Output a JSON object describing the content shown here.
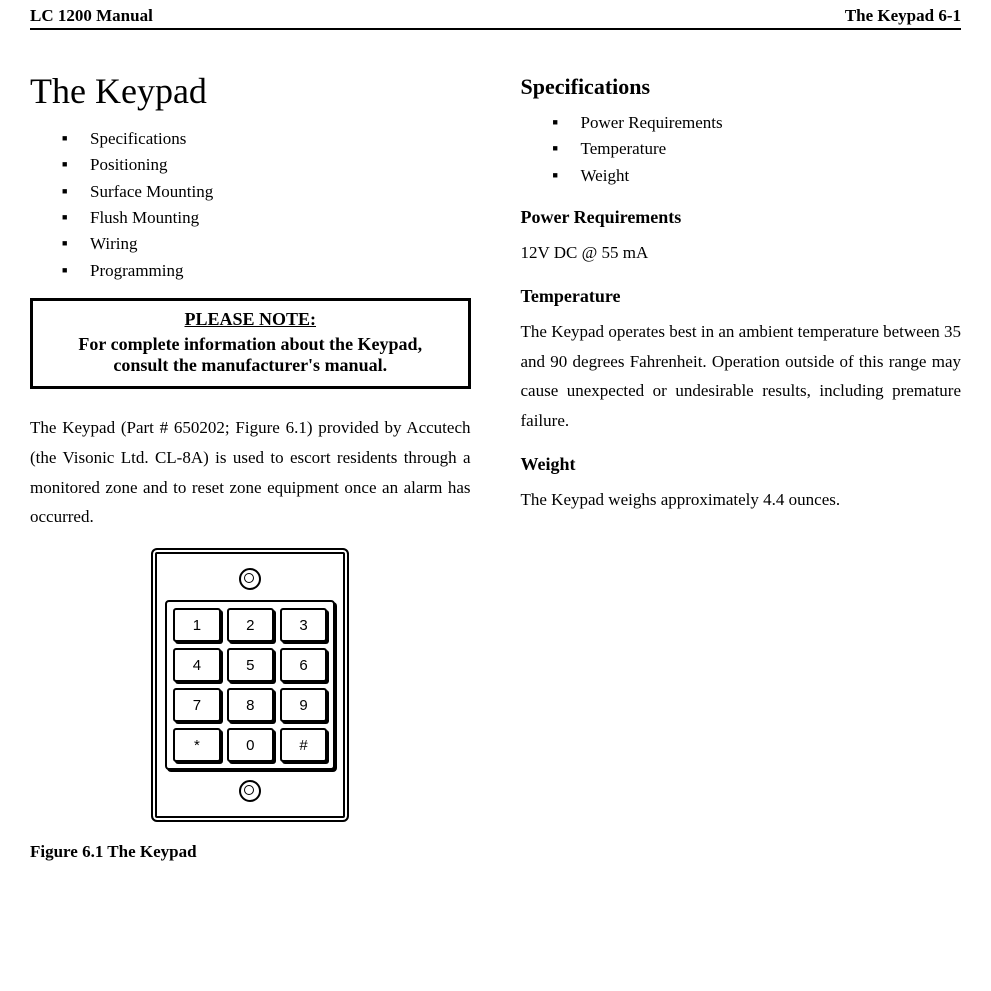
{
  "header": {
    "left": "LC 1200 Manual",
    "right": "The Keypad 6-1"
  },
  "left_col": {
    "title": "The Keypad",
    "toc": [
      "Specifications",
      "Positioning",
      "Surface Mounting",
      "Flush Mounting",
      "Wiring",
      "Programming"
    ],
    "note": {
      "title": "PLEASE NOTE:",
      "line1": "For complete information about the Keypad,",
      "line2": "consult the manufacturer's manual."
    },
    "intro": "The Keypad (Part # 650202; Figure 6.1) provided by Accutech (the Visonic Ltd. CL-8A) is used to escort residents through a monitored zone and to reset zone equipment once an alarm has occurred.",
    "keypad_keys": [
      "1",
      "2",
      "3",
      "4",
      "5",
      "6",
      "7",
      "8",
      "9",
      "*",
      "0",
      "#"
    ],
    "figure_caption": "Figure 6.1 The Keypad"
  },
  "right_col": {
    "spec_heading": "Specifications",
    "spec_items": [
      "Power Requirements",
      "Temperature",
      "Weight"
    ],
    "power_heading": "Power Requirements",
    "power_body": "12V DC @ 55 mA",
    "temp_heading": "Temperature",
    "temp_body": "The Keypad operates best in an ambient temperature between 35 and 90 degrees Fahrenheit. Operation outside of this range may cause unexpected or undesirable results, including premature failure.",
    "weight_heading": "Weight",
    "weight_body": "The Keypad weighs approximately 4.4 ounces."
  },
  "style": {
    "text_color": "#000000",
    "background_color": "#ffffff",
    "border_color": "#000000",
    "body_font": "Times New Roman",
    "title_fontsize_pt": 27,
    "section_fontsize_pt": 17,
    "body_fontsize_pt": 13
  }
}
